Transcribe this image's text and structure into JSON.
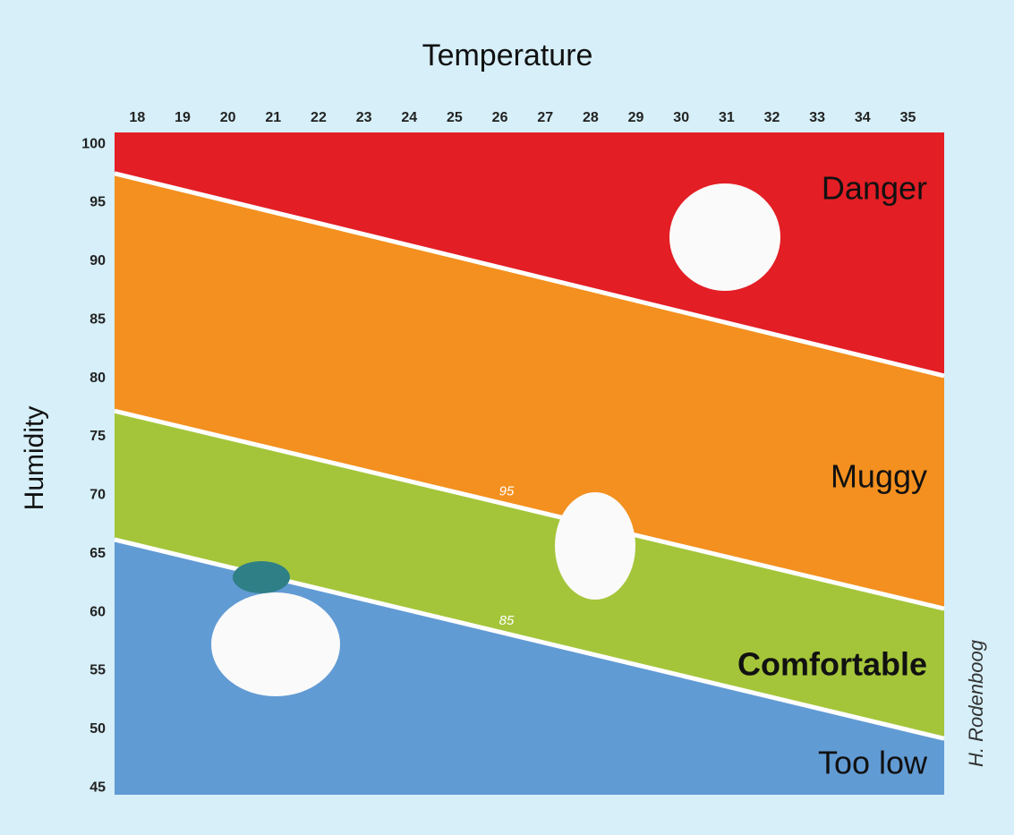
{
  "chart_data": {
    "type": "zones",
    "title": "Temperature",
    "y_label": "Humidity",
    "credit": "H. Rodenboog",
    "xlim": [
      17.5,
      35.8
    ],
    "ylim": [
      44.4,
      101
    ],
    "xticks": [
      18,
      19,
      20,
      21,
      22,
      23,
      24,
      25,
      26,
      27,
      28,
      29,
      30,
      31,
      32,
      33,
      34,
      35
    ],
    "yticks": [
      45,
      50,
      55,
      60,
      65,
      70,
      75,
      80,
      85,
      90,
      95,
      100
    ],
    "boundaries": [
      {
        "x": [
          17.5,
          35.8
        ],
        "values": [
          97.5,
          80.2
        ]
      },
      {
        "label": "95",
        "x": [
          17.5,
          35.8
        ],
        "values": [
          77.2,
          60.3
        ]
      },
      {
        "label": "85",
        "x": [
          17.5,
          35.8
        ],
        "values": [
          66.2,
          49.2
        ]
      }
    ],
    "zones": [
      {
        "name": "Danger",
        "color": "#e31e25"
      },
      {
        "name": "Muggy",
        "color": "#f3901f"
      },
      {
        "name": "Comfortable",
        "color": "#a4c53a"
      },
      {
        "name": "Too low",
        "color": "#619bd4"
      }
    ]
  }
}
